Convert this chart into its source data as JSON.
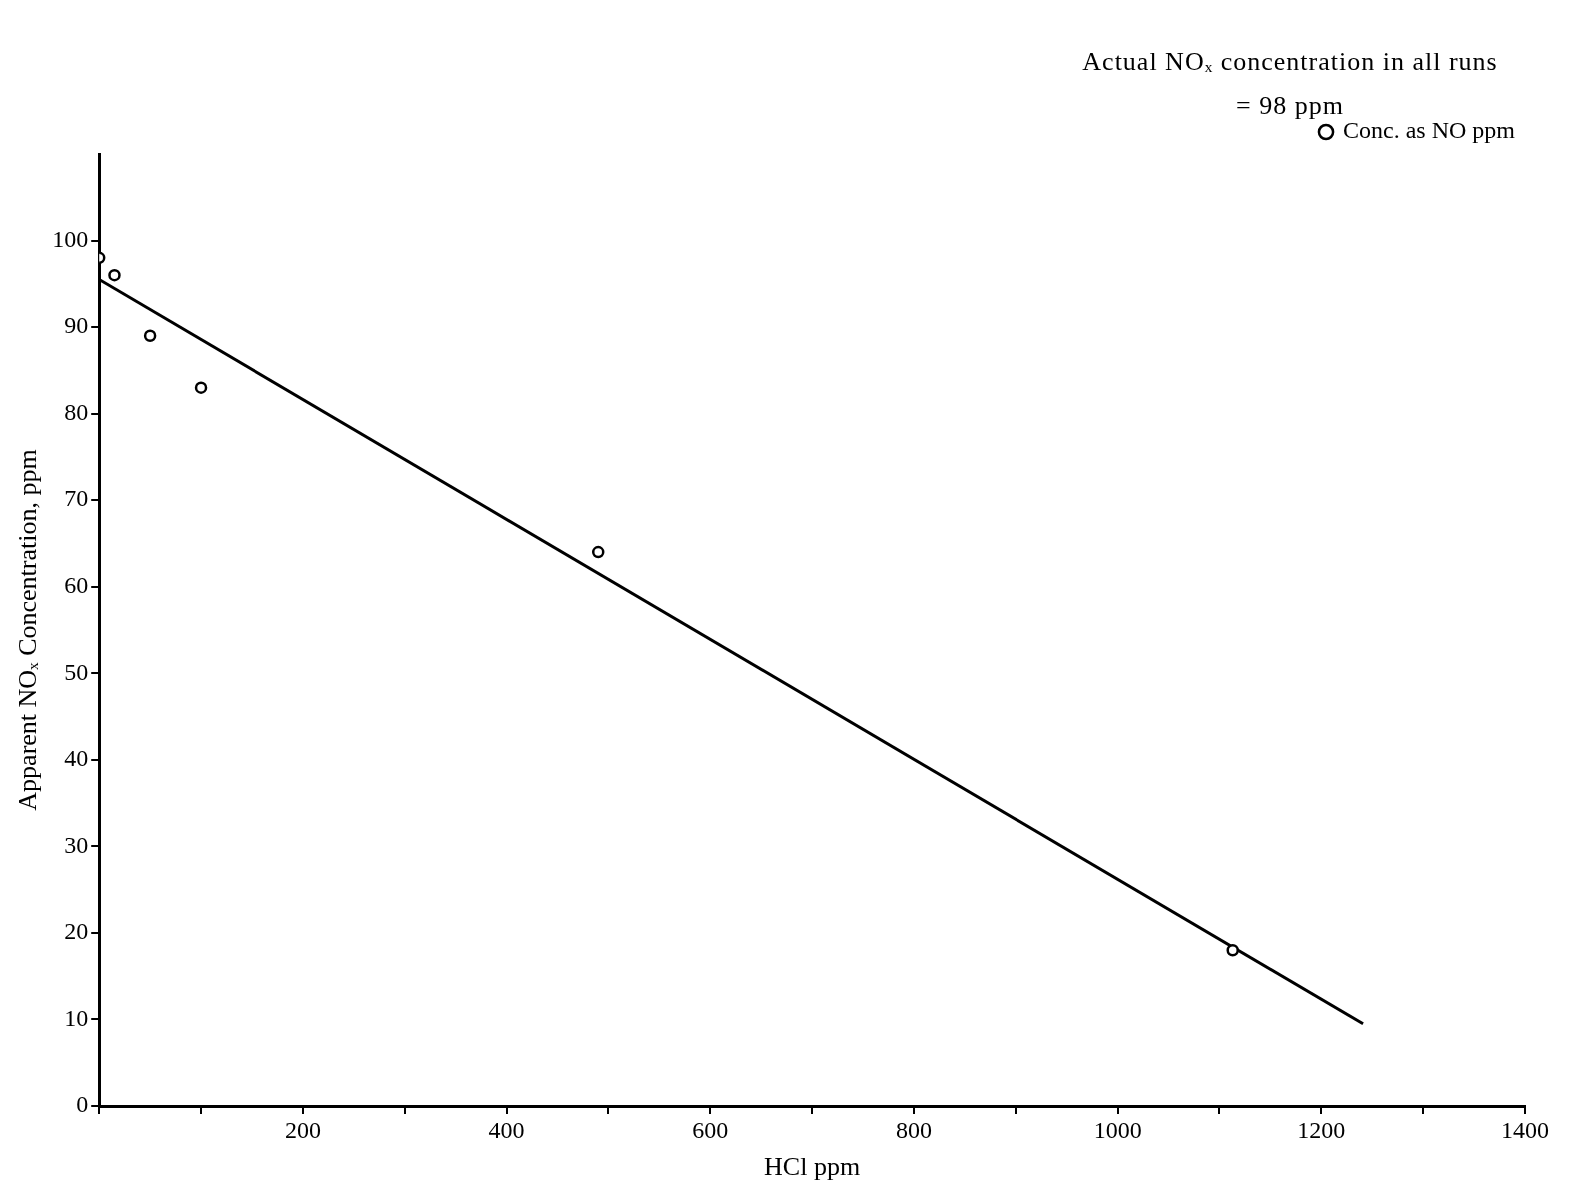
{
  "chart_data": {
    "type": "scatter",
    "xlabel": "HCl ppm",
    "ylabel": "Apparent NOₓ Concentration, ppm",
    "annotations": [
      "Actual NOₓ concentration in all runs = 98 ppm"
    ],
    "series": [
      {
        "name": "Conc. as NO ppm",
        "color": "#000000",
        "marker": "circle",
        "x": [
          0,
          15,
          50,
          100,
          490,
          1113
        ],
        "values": [
          98,
          96,
          89,
          83,
          64,
          18
        ]
      },
      {
        "type": "line",
        "color": "#000000",
        "marker": "none",
        "x": [
          0,
          1241
        ],
        "values": [
          95.5,
          9.5
        ]
      }
    ],
    "xlim": [
      0,
      1400
    ],
    "ylim": [
      0,
      110
    ],
    "xticks": [
      {
        "value": 0,
        "label": null
      },
      {
        "value": 100,
        "label": null
      },
      200,
      {
        "value": 300,
        "label": null
      },
      400,
      {
        "value": 500,
        "label": null
      },
      600,
      {
        "value": 700,
        "label": null
      },
      800,
      {
        "value": 900,
        "label": null
      },
      1000,
      {
        "value": 1100,
        "label": null
      },
      1200,
      {
        "value": 1300,
        "label": null
      },
      1400
    ],
    "yticks": [
      0,
      10,
      20,
      30,
      40,
      50,
      60,
      70,
      80,
      90,
      100
    ],
    "grid": false,
    "legend": "top right"
  }
}
